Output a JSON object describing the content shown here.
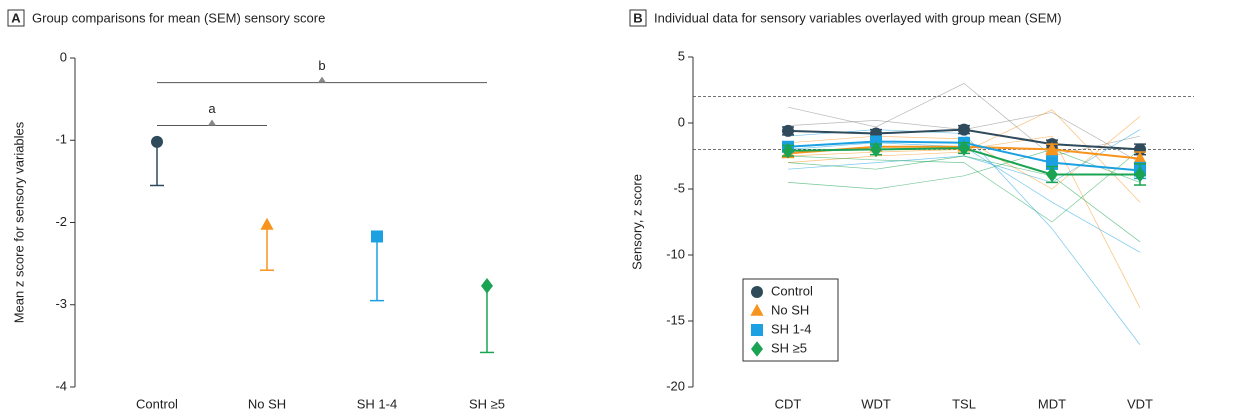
{
  "chart_data": [
    {
      "type": "errorpoint",
      "panel": "A",
      "title": "Group comparisons for mean (SEM) sensory score",
      "y_label": "Mean z score for sensory variables",
      "categories": [
        "Control",
        "No SH",
        "SH 1-4",
        "SH ≥5"
      ],
      "values": [
        -1.02,
        -2.03,
        -2.17,
        -2.77
      ],
      "errors": [
        0.53,
        0.55,
        0.78,
        0.81
      ],
      "colors": [
        "#2e4a5b",
        "#f7941d",
        "#1ba1e2",
        "#1aa352"
      ],
      "markers": [
        "circle",
        "triangle",
        "square",
        "diamond"
      ],
      "ylim": [
        -4,
        0
      ],
      "yticks": [
        -4,
        -3,
        -2,
        -1,
        0
      ],
      "annotations": [
        {
          "text": "a",
          "from": 0,
          "to": 1,
          "y": -0.82
        },
        {
          "text": "b",
          "from": 0,
          "to": 3,
          "y": -0.3
        }
      ]
    },
    {
      "type": "line",
      "panel": "B",
      "title": "Individual data for sensory variables overlayed with group mean (SEM)",
      "y_label": "Sensory, z score",
      "categories": [
        "CDT",
        "WDT",
        "TSL",
        "MDT",
        "VDT"
      ],
      "ylim": [
        -20,
        5
      ],
      "yticks": [
        -20,
        -15,
        -10,
        -5,
        0,
        5
      ],
      "reference_lines": [
        2,
        -2
      ],
      "legend": "lower left",
      "series": [
        {
          "name": "Control",
          "color": "#2e4a5b",
          "marker": "circle",
          "values": [
            -0.6,
            -0.8,
            -0.5,
            -1.6,
            -2.0
          ],
          "errors": [
            0.3,
            0.3,
            0.3,
            0.3,
            0.4
          ]
        },
        {
          "name": "No SH",
          "color": "#f7941d",
          "marker": "triangle",
          "values": [
            -2.3,
            -1.8,
            -1.8,
            -2.0,
            -2.7
          ],
          "errors": [
            0.3,
            0.3,
            0.3,
            0.4,
            0.5
          ]
        },
        {
          "name": "SH 1-4",
          "color": "#1ba1e2",
          "marker": "square",
          "values": [
            -1.8,
            -1.4,
            -1.5,
            -3.0,
            -3.6
          ],
          "errors": [
            0.3,
            0.3,
            0.3,
            0.5,
            0.6
          ]
        },
        {
          "name": "SH ≥5",
          "color": "#1aa352",
          "marker": "diamond",
          "values": [
            -2.1,
            -2.0,
            -1.9,
            -3.9,
            -3.9
          ],
          "errors": [
            0.4,
            0.4,
            0.4,
            0.6,
            0.8
          ]
        }
      ],
      "individual_lines": [
        {
          "color": "#888888",
          "values": [
            1.2,
            -0.3,
            3.0,
            -2.5,
            -1.0
          ]
        },
        {
          "color": "#888888",
          "values": [
            -0.2,
            0.2,
            -0.5,
            0.8,
            -3.0
          ]
        },
        {
          "color": "#f7941d",
          "values": [
            -2.5,
            -2.2,
            -2.0,
            -1.0,
            -14.0
          ]
        },
        {
          "color": "#f7941d",
          "values": [
            -3.0,
            -2.5,
            -2.2,
            1.0,
            -6.0
          ]
        },
        {
          "color": "#f7941d",
          "values": [
            -1.5,
            -1.0,
            -1.2,
            -5.0,
            0.5
          ]
        },
        {
          "color": "#1ba1e2",
          "values": [
            -2.0,
            -1.5,
            -1.8,
            -6.0,
            -9.8
          ]
        },
        {
          "color": "#1ba1e2",
          "values": [
            -1.0,
            -0.5,
            -0.8,
            -8.0,
            -16.8
          ]
        },
        {
          "color": "#1ba1e2",
          "values": [
            -3.5,
            -3.0,
            -2.5,
            -4.5,
            -0.5
          ]
        },
        {
          "color": "#1aa352",
          "values": [
            -3.0,
            -3.5,
            -2.5,
            -4.0,
            -9.0
          ]
        },
        {
          "color": "#1aa352",
          "values": [
            -2.5,
            -2.8,
            -3.0,
            -7.5,
            -2.0
          ]
        },
        {
          "color": "#1aa352",
          "values": [
            -4.5,
            -5.0,
            -4.0,
            -2.0,
            -4.5
          ]
        }
      ]
    }
  ]
}
